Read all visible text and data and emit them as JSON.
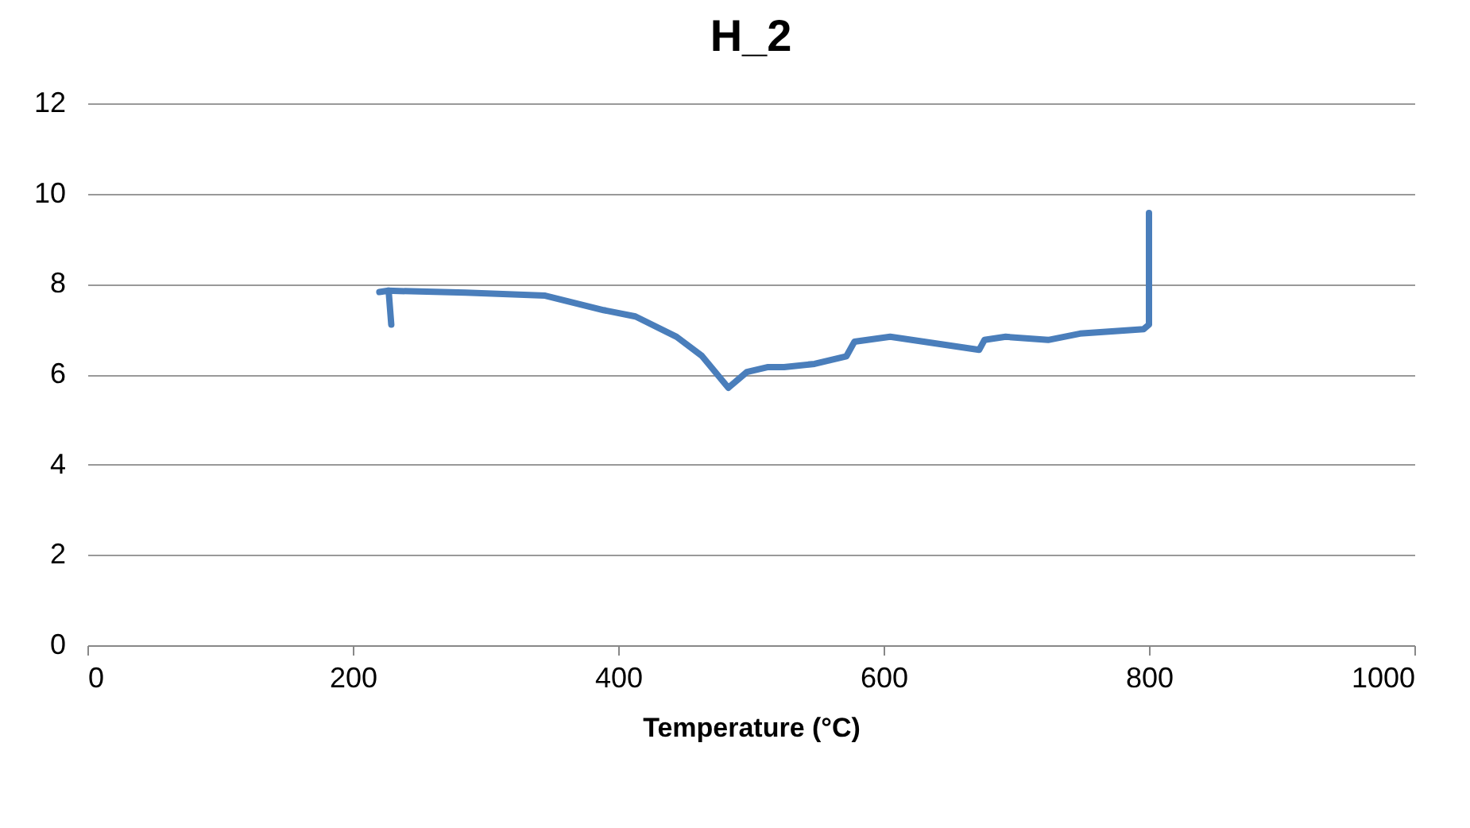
{
  "chart_data": {
    "type": "line",
    "title": "H_2",
    "xlabel": "Temperature (°C)",
    "xlim": [
      0,
      1000
    ],
    "xticks": [
      0,
      200,
      400,
      600,
      800,
      1000
    ],
    "ylim": [
      0,
      12
    ],
    "yticks": [
      0,
      2,
      4,
      6,
      8,
      10,
      12
    ],
    "grid": "y",
    "legend": false,
    "marker": "none",
    "line_style": "solid",
    "series": [
      {
        "color": "#4a7ebb",
        "x": [
          229,
          227,
          220,
          226,
          285,
          345,
          389,
          413,
          444,
          463,
          483,
          497,
          513,
          525,
          548,
          572,
          578,
          605,
          672,
          676,
          692,
          724,
          748,
          796,
          800,
          800
        ],
        "values": [
          7.1,
          7.85,
          7.82,
          7.85,
          7.81,
          7.74,
          7.42,
          7.28,
          6.83,
          6.41,
          5.7,
          6.05,
          6.16,
          6.16,
          6.23,
          6.4,
          6.72,
          6.83,
          6.54,
          6.76,
          6.83,
          6.76,
          6.9,
          7.0,
          7.1,
          9.57
        ]
      }
    ]
  }
}
